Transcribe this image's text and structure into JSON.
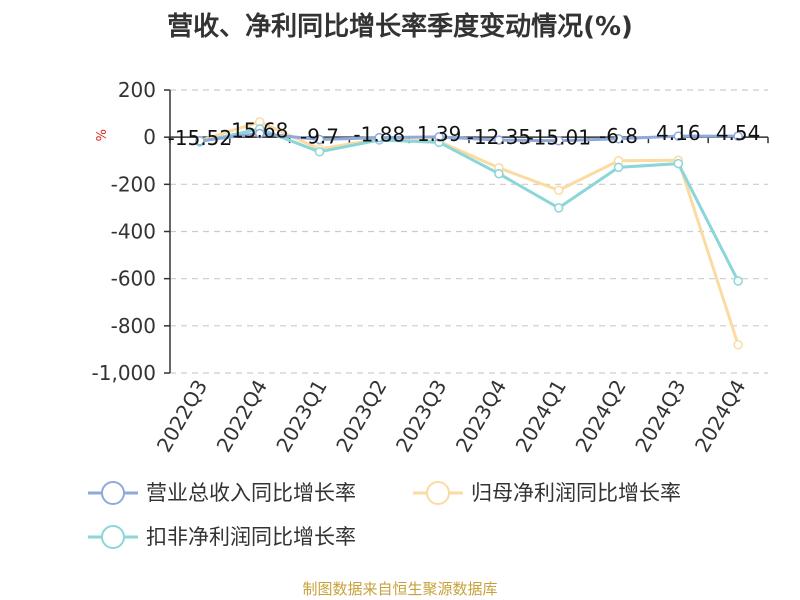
{
  "chart_data": {
    "type": "line",
    "title": "营收、净利同比增长率季度变动情况(%)",
    "ylabel": "%",
    "xlabel": "",
    "categories": [
      "2022Q3",
      "2022Q4",
      "2023Q1",
      "2023Q2",
      "2023Q3",
      "2023Q4",
      "2024Q1",
      "2024Q2",
      "2024Q3",
      "2024Q4"
    ],
    "ylim": [
      -1000,
      200
    ],
    "yticks": [
      200,
      0,
      -200,
      -400,
      -600,
      -800,
      -1000
    ],
    "ytick_labels": [
      "200",
      "0",
      "-200",
      "-400",
      "-600",
      "-800",
      "-1,000"
    ],
    "grid": true,
    "legend_position": "bottom",
    "series": [
      {
        "name": "营业总收入同比增长率",
        "color": "#8eaadb",
        "values": [
          -15.52,
          15.68,
          -9.7,
          -1.88,
          1.39,
          -12.35,
          -15.01,
          -6.8,
          4.16,
          4.54
        ],
        "labels": [
          "-15.52",
          "15.68",
          "-9.7",
          "-1.88",
          "1.39",
          "-12.35",
          "-15.01",
          "-6.8",
          "4.16",
          "4.54"
        ]
      },
      {
        "name": "归母净利润同比增长率",
        "color": "#fbdba1",
        "values": [
          -15,
          65,
          -50,
          -8,
          -18,
          -130,
          -225,
          -100,
          -98,
          -880
        ]
      },
      {
        "name": "扣非净利润同比增长率",
        "color": "#8cd5d8",
        "values": [
          -20,
          35,
          -62,
          -12,
          -22,
          -155,
          -300,
          -128,
          -112,
          -610
        ]
      }
    ]
  },
  "source": "制图数据来自恒生聚源数据库"
}
